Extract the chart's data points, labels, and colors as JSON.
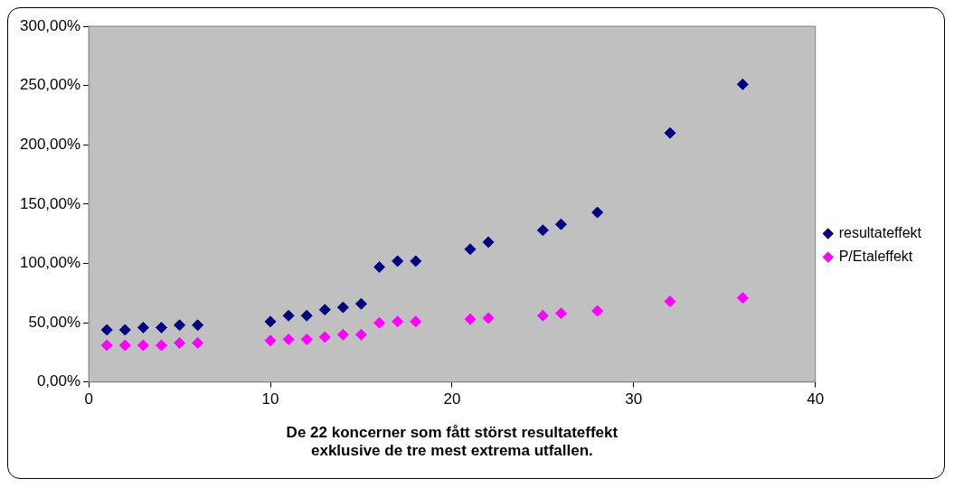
{
  "chart_data": {
    "type": "scatter",
    "xlabel": "De 22 koncerner som fått störst resultateffekt exklusive de tre mest extrema utfallen.",
    "xlim": [
      0,
      40
    ],
    "xticks": [
      0,
      10,
      20,
      30,
      40
    ],
    "ylim": [
      0,
      300
    ],
    "yticks": [
      {
        "value": 0,
        "label": "0,00%"
      },
      {
        "value": 50,
        "label": "50,00%"
      },
      {
        "value": 100,
        "label": "100,00%"
      },
      {
        "value": 150,
        "label": "150,00%"
      },
      {
        "value": 200,
        "label": "200,00%"
      },
      {
        "value": 250,
        "label": "250,00%"
      },
      {
        "value": 300,
        "label": "300,00%"
      }
    ],
    "grid": "y",
    "legend": "right",
    "marker": "diamond",
    "x": [
      1,
      2,
      3,
      4,
      5,
      6,
      10,
      11,
      12,
      13,
      14,
      15,
      16,
      17,
      18,
      21,
      22,
      25,
      26,
      28,
      32,
      36
    ],
    "series": [
      {
        "name": "resultateffekt",
        "color": "#000080",
        "values": [
          44,
          44,
          46,
          46,
          48,
          48,
          51,
          56,
          56,
          61,
          63,
          66,
          97,
          102,
          102,
          112,
          118,
          128,
          133,
          143,
          210,
          251
        ]
      },
      {
        "name": "P/Etaleffekt",
        "color": "#ff00ff",
        "values": [
          31,
          31,
          31,
          31,
          33,
          33,
          35,
          36,
          36,
          38,
          40,
          40,
          50,
          51,
          51,
          53,
          54,
          56,
          58,
          60,
          68,
          71
        ]
      }
    ]
  }
}
